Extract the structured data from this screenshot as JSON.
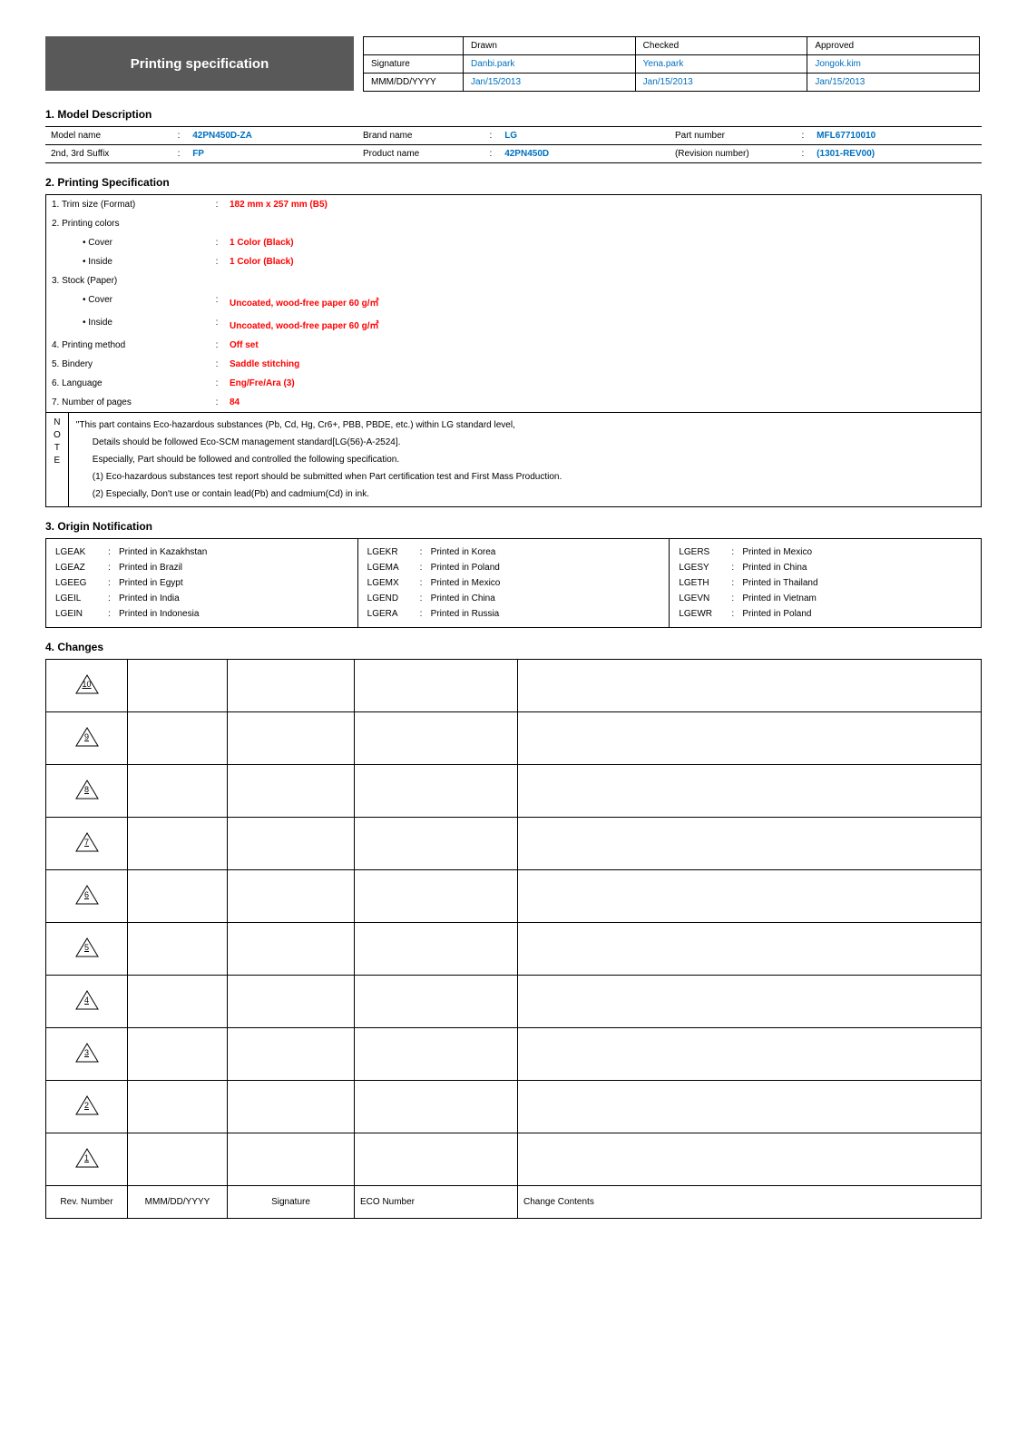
{
  "header": {
    "title": "Printing specification",
    "sig_table": {
      "cols": [
        "",
        "Drawn",
        "Checked",
        "Approved"
      ],
      "rows": [
        {
          "label": "Signature",
          "drawn": "Danbi.park",
          "checked": "Yena.park",
          "approved": "Jongok.kim"
        },
        {
          "label": "MMM/DD/YYYY",
          "drawn": "Jan/15/2013",
          "checked": "Jan/15/2013",
          "approved": "Jan/15/2013"
        }
      ]
    }
  },
  "sections": {
    "model_desc_title": "1. Model Description",
    "printing_spec_title": "2. Printing Specification",
    "origin_title": "3. Origin Notification",
    "changes_title": "4. Changes"
  },
  "model_desc": {
    "row1": {
      "l1": "Model name",
      "v1": "42PN450D-ZA",
      "l2": "Brand name",
      "v2": "LG",
      "l3": "Part number",
      "v3": "MFL67710010"
    },
    "row2": {
      "l1": "2nd, 3rd Suffix",
      "v1": "FP",
      "l2": "Product name",
      "v2": "42PN450D",
      "l3": "(Revision number)",
      "v3": "(1301-REV00)"
    }
  },
  "spec": {
    "items": [
      {
        "k": "1. Trim size (Format)",
        "v": "182 mm x 257 mm (B5)",
        "red": true
      },
      {
        "k": "2. Printing colors",
        "v": "",
        "red": false
      },
      {
        "k": "• Cover",
        "v": "1 Color (Black)",
        "red": true,
        "indent": true
      },
      {
        "k": "• Inside",
        "v": "1 Color (Black)",
        "red": true,
        "indent": true
      },
      {
        "k": "3. Stock (Paper)",
        "v": "",
        "red": false
      },
      {
        "k": "• Cover",
        "v": "Uncoated, wood-free paper 60 g/㎡",
        "red": true,
        "indent": true
      },
      {
        "k": "• Inside",
        "v": "Uncoated, wood-free paper 60 g/㎡",
        "red": true,
        "indent": true
      },
      {
        "k": "4. Printing method",
        "v": "Off set",
        "red": true
      },
      {
        "k": "5. Bindery",
        "v": "Saddle stitching",
        "red": true
      },
      {
        "k": "6. Language",
        "v": "Eng/Fre/Ara (3)",
        "red": true
      },
      {
        "k": "7. Number of pages",
        "v": "84",
        "red": true
      }
    ],
    "note_side": "N\nO\nT\nE",
    "note_lines": [
      "\"This part contains Eco-hazardous substances (Pb, Cd, Hg, Cr6+, PBB, PBDE, etc.) within LG standard level,",
      "Details should be followed Eco-SCM management standard[LG(56)-A-2524].",
      "Especially, Part should be followed and controlled the following specification.",
      "(1) Eco-hazardous substances test report should be submitted when Part certification test and First Mass Production.",
      "(2) Especially, Don't use or contain lead(Pb) and cadmium(Cd) in ink."
    ]
  },
  "origin": {
    "col1": [
      {
        "code": "LGEAK",
        "txt": "Printed in Kazakhstan"
      },
      {
        "code": "LGEAZ",
        "txt": "Printed in Brazil"
      },
      {
        "code": "LGEEG",
        "txt": "Printed in Egypt"
      },
      {
        "code": "LGEIL",
        "txt": "Printed in India"
      },
      {
        "code": "LGEIN",
        "txt": "Printed in Indonesia"
      }
    ],
    "col2": [
      {
        "code": "LGEKR",
        "txt": "Printed in Korea"
      },
      {
        "code": "LGEMA",
        "txt": "Printed in Poland"
      },
      {
        "code": "LGEMX",
        "txt": "Printed in Mexico"
      },
      {
        "code": "LGEND",
        "txt": "Printed in China"
      },
      {
        "code": "LGERA",
        "txt": "Printed in Russia"
      }
    ],
    "col3": [
      {
        "code": "LGERS",
        "txt": "Printed in Mexico"
      },
      {
        "code": "LGESY",
        "txt": "Printed in China"
      },
      {
        "code": "LGETH",
        "txt": "Printed in Thailand"
      },
      {
        "code": "LGEVN",
        "txt": "Printed in Vietnam"
      },
      {
        "code": "LGEWR",
        "txt": "Printed in Poland"
      }
    ]
  },
  "changes": {
    "rev_numbers": [
      "10",
      "9",
      "8",
      "7",
      "6",
      "5",
      "4",
      "3",
      "2",
      "1"
    ],
    "hdr": {
      "rev": "Rev. Number",
      "date": "MMM/DD/YYYY",
      "sig": "Signature",
      "eco": "ECO Number",
      "chg": "Change Contents"
    }
  },
  "style": {
    "title_bg": "#595959",
    "blue": "#0070c0",
    "red": "#ff0000",
    "border": "#000000",
    "bg": "#ffffff",
    "base_font_size": 10,
    "title_font_size": 15
  }
}
